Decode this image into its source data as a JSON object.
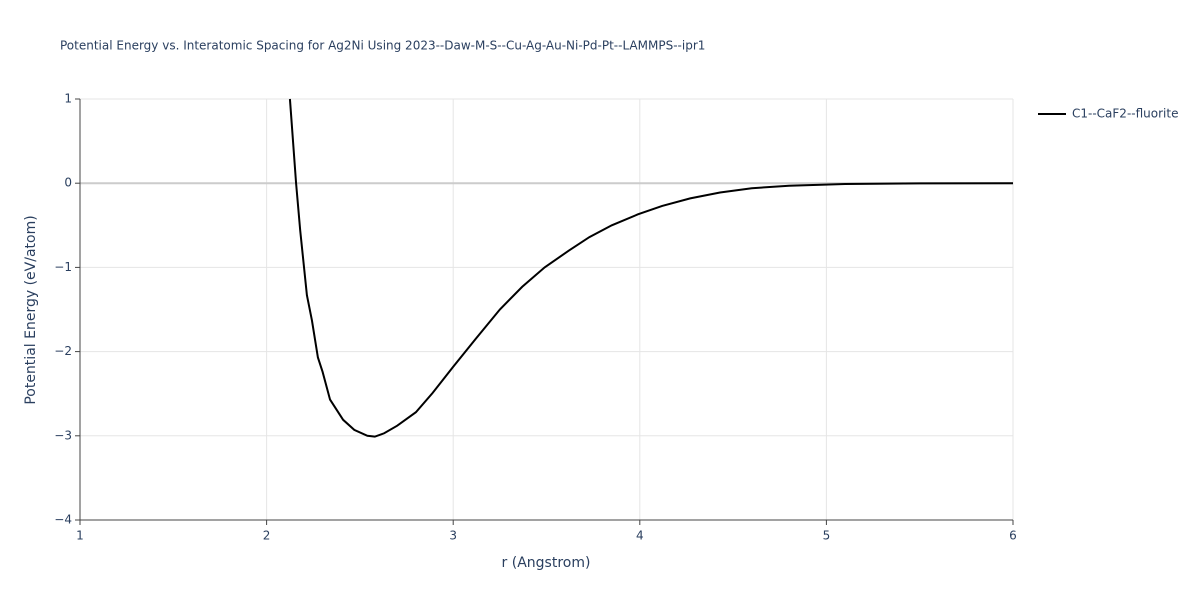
{
  "chart_data": {
    "type": "line",
    "title": "Potential Energy vs. Interatomic Spacing for Ag2Ni Using 2023--Daw-M-S--Cu-Ag-Au-Ni-Pd-Pt--LAMMPS--ipr1",
    "x_label": "r (Angstrom)",
    "y_label": "Potential Energy (eV/atom)",
    "xlim": [
      1,
      6
    ],
    "xticks": [
      1,
      2,
      3,
      4,
      5,
      6
    ],
    "ylim": [
      -4,
      1
    ],
    "yticks": [
      {
        "value": -4,
        "label": "−4"
      },
      {
        "value": -3,
        "label": "−3"
      },
      {
        "value": -2,
        "label": "−2"
      },
      {
        "value": -1,
        "label": "−1"
      },
      0,
      1
    ],
    "grid": true,
    "legend": "outside-top-right",
    "x": [
      2.125,
      2.158,
      2.18,
      2.216,
      2.243,
      2.275,
      2.3,
      2.34,
      2.41,
      2.47,
      2.54,
      2.58,
      2.63,
      2.7,
      2.8,
      2.89,
      3.0,
      3.12,
      3.25,
      3.37,
      3.49,
      3.62,
      3.73,
      3.85,
      3.99,
      4.12,
      4.27,
      4.43,
      4.6,
      4.8,
      5.1,
      5.5,
      6.0
    ],
    "series": [
      {
        "name": "C1--CaF2--fluorite",
        "color": "#000000",
        "values": [
          1.0,
          0.0,
          -0.56,
          -1.33,
          -1.63,
          -2.07,
          -2.24,
          -2.57,
          -2.81,
          -2.93,
          -3.0,
          -3.01,
          -2.97,
          -2.88,
          -2.72,
          -2.49,
          -2.18,
          -1.85,
          -1.5,
          -1.23,
          -1.0,
          -0.8,
          -0.64,
          -0.5,
          -0.37,
          -0.27,
          -0.18,
          -0.11,
          -0.06,
          -0.03,
          -0.01,
          -0.002,
          0.0
        ]
      }
    ]
  }
}
